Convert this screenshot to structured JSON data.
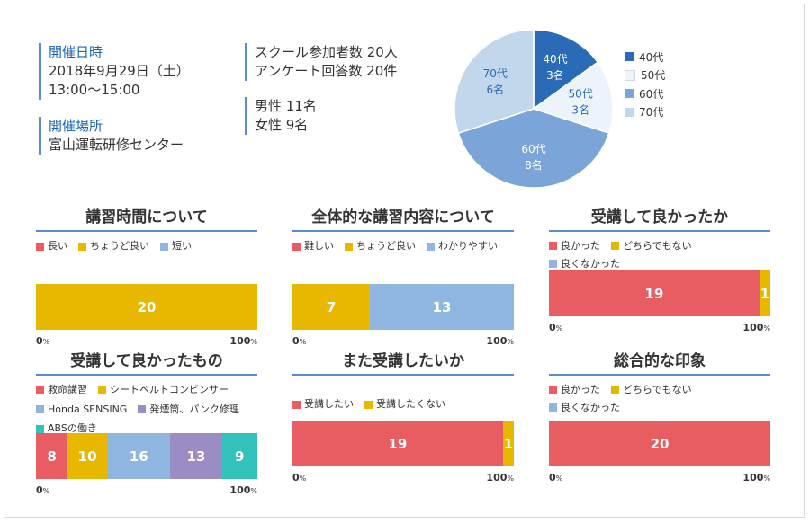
{
  "colors": {
    "red": "#e85d62",
    "yellow": "#e8b800",
    "lightblue": "#8fb6e0",
    "purple": "#9b8dc4",
    "teal": "#33c1bc",
    "accent": "#5b8ccc",
    "age40": "#2a6bb8",
    "age50": "#edf3fb",
    "age60": "#7ba5d8",
    "age70": "#c2d6ec"
  },
  "info": {
    "date_title": "開催日時",
    "date_line1": "2018年9月29日（土）",
    "date_line2": "13:00〜15:00",
    "place_title": "開催場所",
    "place_line": "富山運転研修センター",
    "participants": "スクール参加者数 20人",
    "answers": "アンケート回答数 20件",
    "male": "男性 11名",
    "female": "女性 9名"
  },
  "axis": {
    "min": "0",
    "max": "100",
    "unit": "%"
  },
  "chart_data": [
    {
      "type": "pie",
      "categories": [
        "40代",
        "50代",
        "60代",
        "70代"
      ],
      "values": [
        3,
        3,
        8,
        6
      ],
      "value_labels": [
        "3名",
        "3名",
        "8名",
        "6名"
      ],
      "legend": [
        "40代",
        "50代",
        "60代",
        "70代"
      ],
      "legend_position": "right",
      "colors": [
        "#2a6bb8",
        "#edf3fb",
        "#7ba5d8",
        "#c2d6ec"
      ]
    },
    {
      "type": "bar",
      "stacked": true,
      "title": "講習時間について",
      "legend": [
        "長い",
        "ちょうど良い",
        "短い"
      ],
      "legend_colors": [
        "#e85d62",
        "#e8b800",
        "#8fb6e0"
      ],
      "series": [
        {
          "name": "長い",
          "values": [
            0
          ]
        },
        {
          "name": "ちょうど良い",
          "values": [
            20
          ]
        },
        {
          "name": "短い",
          "values": [
            0
          ]
        }
      ],
      "xlim": [
        0,
        100
      ]
    },
    {
      "type": "bar",
      "stacked": true,
      "title": "全体的な講習内容について",
      "legend": [
        "難しい",
        "ちょうど良い",
        "わかりやすい"
      ],
      "legend_colors": [
        "#e85d62",
        "#e8b800",
        "#8fb6e0"
      ],
      "series": [
        {
          "name": "難しい",
          "values": [
            0
          ]
        },
        {
          "name": "ちょうど良い",
          "values": [
            7
          ]
        },
        {
          "name": "わかりやすい",
          "values": [
            13
          ]
        }
      ],
      "xlim": [
        0,
        100
      ]
    },
    {
      "type": "bar",
      "stacked": true,
      "title": "受講して良かったか",
      "legend": [
        "良かった",
        "どちらでもない",
        "良くなかった"
      ],
      "legend_colors": [
        "#e85d62",
        "#e8b800",
        "#8fb6e0"
      ],
      "series": [
        {
          "name": "良かった",
          "values": [
            19
          ]
        },
        {
          "name": "どちらでもない",
          "values": [
            1
          ]
        },
        {
          "name": "良くなかった",
          "values": [
            0
          ]
        }
      ],
      "xlim": [
        0,
        100
      ]
    },
    {
      "type": "bar",
      "stacked": true,
      "title": "受講して良かったもの",
      "legend": [
        "救命講習",
        "シートベルトコンビンサー",
        "Honda SENSING",
        "発煙筒、パンク修理",
        "ABSの働き"
      ],
      "legend_colors": [
        "#e85d62",
        "#e8b800",
        "#8fb6e0",
        "#9b8dc4",
        "#33c1bc"
      ],
      "series": [
        {
          "name": "救命講習",
          "values": [
            8
          ]
        },
        {
          "name": "シートベルトコンビンサー",
          "values": [
            10
          ]
        },
        {
          "name": "Honda SENSING",
          "values": [
            16
          ]
        },
        {
          "name": "発煙筒、パンク修理",
          "values": [
            13
          ]
        },
        {
          "name": "ABSの働き",
          "values": [
            9
          ]
        }
      ],
      "xlim": [
        0,
        100
      ]
    },
    {
      "type": "bar",
      "stacked": true,
      "title": "また受講したいか",
      "legend": [
        "受講したい",
        "受講したくない"
      ],
      "legend_colors": [
        "#e85d62",
        "#e8b800"
      ],
      "series": [
        {
          "name": "受講したい",
          "values": [
            19
          ]
        },
        {
          "name": "受講したくない",
          "values": [
            1
          ]
        }
      ],
      "xlim": [
        0,
        100
      ]
    },
    {
      "type": "bar",
      "stacked": true,
      "title": "総合的な印象",
      "legend": [
        "良かった",
        "どちらでもない",
        "良くなかった"
      ],
      "legend_colors": [
        "#e85d62",
        "#e8b800",
        "#8fb6e0"
      ],
      "series": [
        {
          "name": "良かった",
          "values": [
            20
          ]
        },
        {
          "name": "どちらでもない",
          "values": [
            0
          ]
        },
        {
          "name": "良くなかった",
          "values": [
            0
          ]
        }
      ],
      "xlim": [
        0,
        100
      ]
    }
  ]
}
